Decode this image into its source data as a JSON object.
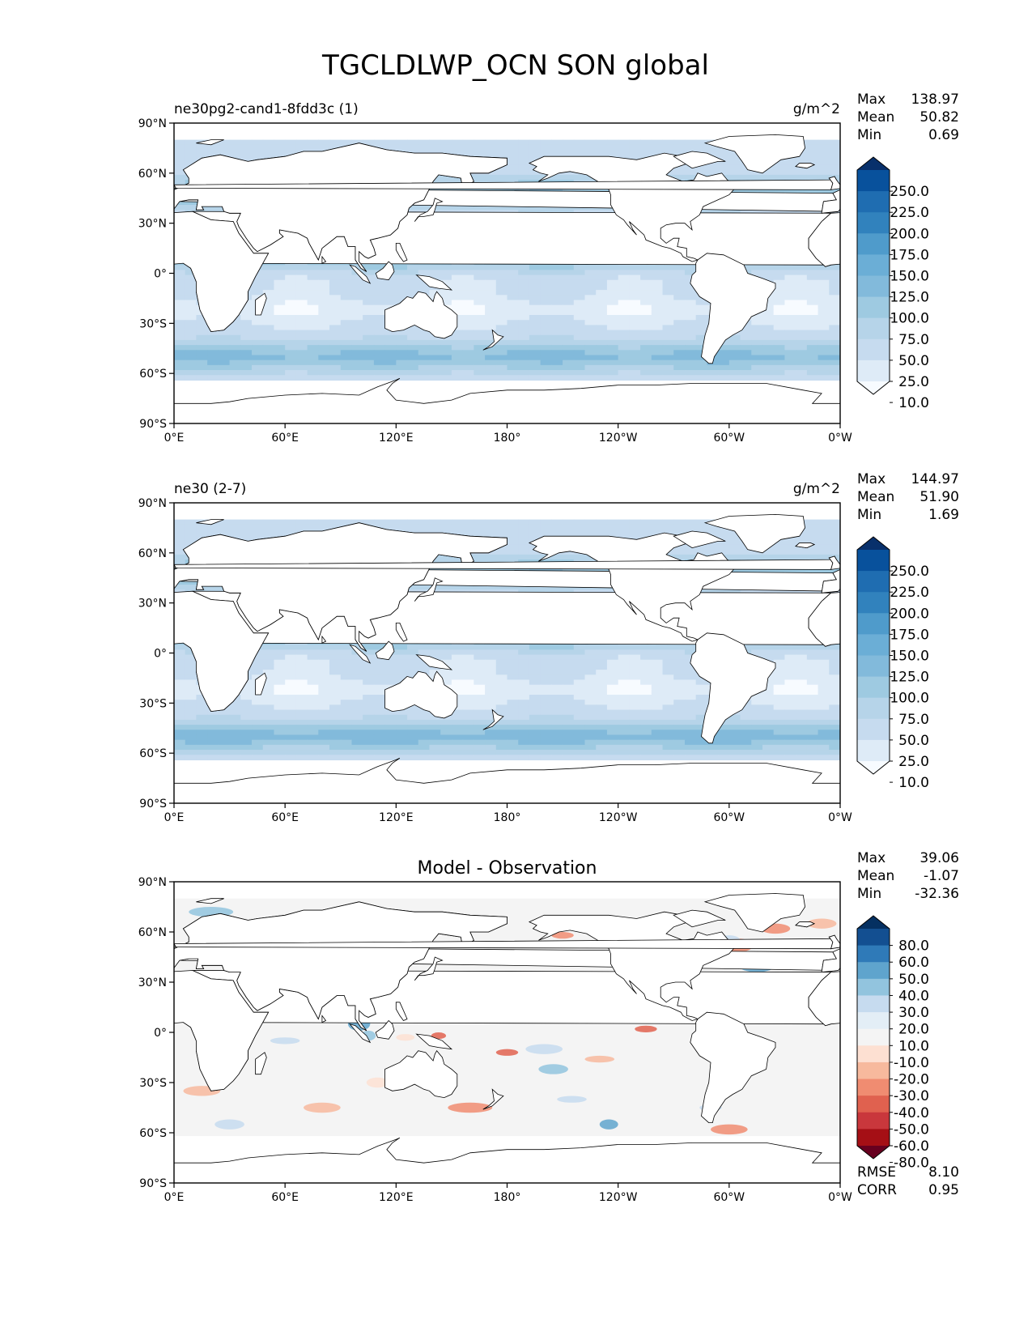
{
  "title": "TGCLDLWP_OCN SON global",
  "colors": {
    "seq": [
      "#f7fbff",
      "#deebf7",
      "#c6dbef",
      "#b6d4e9",
      "#9ecae1",
      "#82badb",
      "#6baed6",
      "#4f9bcb",
      "#3182bd",
      "#1f6db1",
      "#08519c",
      "#08306b"
    ],
    "div": [
      "#67001f",
      "#a50f15",
      "#c9373c",
      "#e0614f",
      "#f08c71",
      "#f7b99d",
      "#fde0d2",
      "#f4f4f4",
      "#e3eef6",
      "#c6dbef",
      "#92c4de",
      "#5fa4cd",
      "#2f7ab8",
      "#134f91",
      "#053061"
    ],
    "land": "#ffffff",
    "coast": "#000000"
  },
  "chart_data": [
    {
      "type": "heatmap",
      "title": "ne30pg2-cand1-8fdd3c (1)",
      "units": "g/m^2",
      "stats": [
        {
          "label": "Max",
          "value": "138.97"
        },
        {
          "label": "Mean",
          "value": "50.82"
        },
        {
          "label": "Min",
          "value": "0.69"
        }
      ],
      "xticks": [
        "0°E",
        "60°E",
        "120°E",
        "180°",
        "120°W",
        "60°W",
        "0°W"
      ],
      "yticks": [
        "90°N",
        "60°N",
        "30°N",
        "0°",
        "30°S",
        "60°S",
        "90°S"
      ],
      "xlim": [
        0,
        360
      ],
      "ylim": [
        -90,
        90
      ],
      "colorbar": {
        "levels": [
          "250.0",
          "225.0",
          "200.0",
          "175.0",
          "150.0",
          "125.0",
          "100.0",
          "75.0",
          "50.0",
          "25.0",
          "10.0"
        ],
        "extend": "both"
      },
      "field_values": {
        "tropics": 50,
        "itcz_band": 100,
        "midlat_storm_track": 100,
        "southern_ocean": 110,
        "subtropics": 30,
        "north_pacific": 100,
        "north_atlantic": 100
      }
    },
    {
      "type": "heatmap",
      "title": "ne30 (2-7)",
      "units": "g/m^2",
      "stats": [
        {
          "label": "Max",
          "value": "144.97"
        },
        {
          "label": "Mean",
          "value": "51.90"
        },
        {
          "label": "Min",
          "value": "1.69"
        }
      ],
      "xticks": [
        "0°E",
        "60°E",
        "120°E",
        "180°",
        "120°W",
        "60°W",
        "0°W"
      ],
      "yticks": [
        "90°N",
        "60°N",
        "30°N",
        "0°",
        "30°S",
        "60°S",
        "90°S"
      ],
      "xlim": [
        0,
        360
      ],
      "ylim": [
        -90,
        90
      ],
      "colorbar": {
        "levels": [
          "250.0",
          "225.0",
          "200.0",
          "175.0",
          "150.0",
          "125.0",
          "100.0",
          "75.0",
          "50.0",
          "25.0",
          "10.0"
        ],
        "extend": "both"
      },
      "field_values": {
        "tropics": 50,
        "itcz_band": 100,
        "midlat_storm_track": 100,
        "southern_ocean": 115,
        "subtropics": 35,
        "north_pacific": 100,
        "north_atlantic": 100
      }
    },
    {
      "type": "heatmap",
      "title": "Model - Observation",
      "units": "",
      "stats": [
        {
          "label": "Max",
          "value": "39.06"
        },
        {
          "label": "Mean",
          "value": "-1.07"
        },
        {
          "label": "Min",
          "value": "-32.36"
        }
      ],
      "extra_stats": [
        {
          "label": "RMSE",
          "value": "8.10"
        },
        {
          "label": "CORR",
          "value": "0.95"
        }
      ],
      "xticks": [
        "0°E",
        "60°E",
        "120°E",
        "180°",
        "120°W",
        "60°W",
        "0°W"
      ],
      "yticks": [
        "90°N",
        "60°N",
        "30°N",
        "0°",
        "30°S",
        "60°S",
        "90°S"
      ],
      "xlim": [
        0,
        360
      ],
      "ylim": [
        -90,
        90
      ],
      "colorbar": {
        "levels": [
          "80.0",
          "60.0",
          "50.0",
          "40.0",
          "30.0",
          "20.0",
          "10.0",
          "-10.0",
          "-20.0",
          "-30.0",
          "-40.0",
          "-50.0",
          "-60.0",
          "-80.0"
        ],
        "extend": "both"
      }
    }
  ]
}
